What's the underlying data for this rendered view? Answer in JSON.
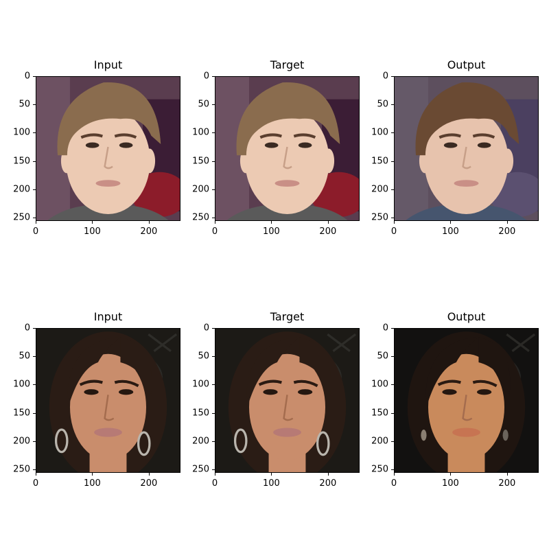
{
  "axes": {
    "y_ticks": [
      "0",
      "50",
      "100",
      "150",
      "200",
      "250"
    ],
    "x_ticks": [
      "0",
      "100",
      "200"
    ],
    "y_values": [
      0,
      50,
      100,
      150,
      200,
      250
    ],
    "x_values": [
      0,
      100,
      200
    ],
    "image_size": 256
  },
  "rows": [
    {
      "panels": [
        {
          "title": "Input",
          "subject": "young-man",
          "bg": "#5a3d4f"
        },
        {
          "title": "Target",
          "subject": "young-man",
          "bg": "#5a3d4f"
        },
        {
          "title": "Output",
          "subject": "young-man-output",
          "bg": "#5d4f5e"
        }
      ]
    },
    {
      "panels": [
        {
          "title": "Input",
          "subject": "woman",
          "bg": "#1c1a16"
        },
        {
          "title": "Target",
          "subject": "woman",
          "bg": "#1c1a16"
        },
        {
          "title": "Output",
          "subject": "woman-output",
          "bg": "#121110"
        }
      ]
    }
  ]
}
